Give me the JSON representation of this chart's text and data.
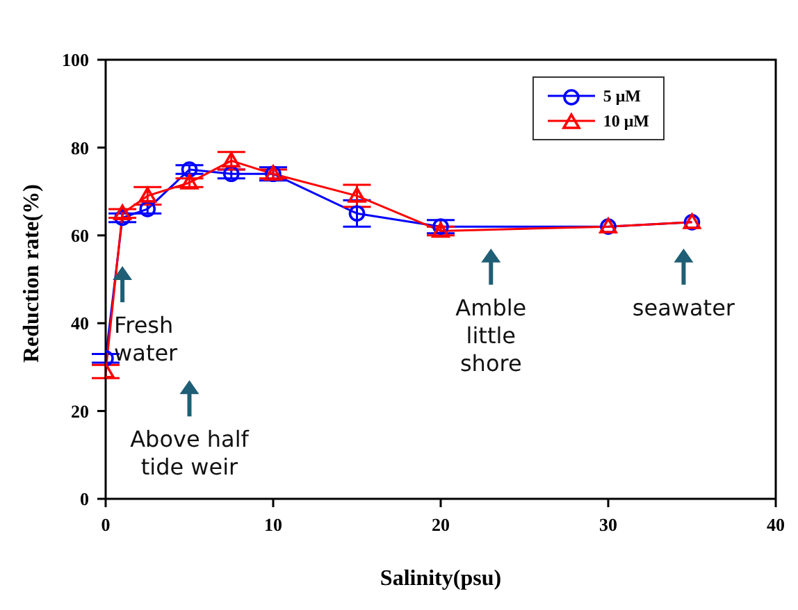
{
  "chart_data": {
    "type": "line",
    "xlabel": "Salinity(psu)",
    "ylabel": "Reduction rate(%)",
    "x": [
      0,
      1,
      2.5,
      5,
      7.5,
      10,
      15,
      20,
      30,
      35
    ],
    "series": [
      {
        "name": "5 μM",
        "color": "#0000ff",
        "marker": "circle",
        "values": [
          32,
          64,
          66,
          75,
          74,
          74,
          65,
          62,
          62,
          63
        ],
        "errors": [
          1,
          1,
          1,
          1,
          1,
          1.5,
          3,
          1.5,
          null,
          null
        ]
      },
      {
        "name": "10 μM",
        "color": "#ff0000",
        "marker": "triangle",
        "values": [
          29,
          65,
          69,
          72,
          77,
          74,
          69,
          61,
          62,
          63
        ],
        "errors": [
          1.5,
          1,
          2,
          1,
          2,
          1,
          2.5,
          1,
          null,
          null
        ]
      }
    ],
    "xlim": [
      0,
      40
    ],
    "xticks": [
      0,
      10,
      20,
      30,
      40
    ],
    "ylim": [
      0,
      100
    ],
    "yticks": [
      0,
      20,
      40,
      60,
      80,
      100
    ],
    "grid": false,
    "legend": "top right",
    "line_style": "solid",
    "annotations": [
      "Fresh water",
      "Above half tide weir",
      "Amble little shore",
      "seawater"
    ]
  }
}
